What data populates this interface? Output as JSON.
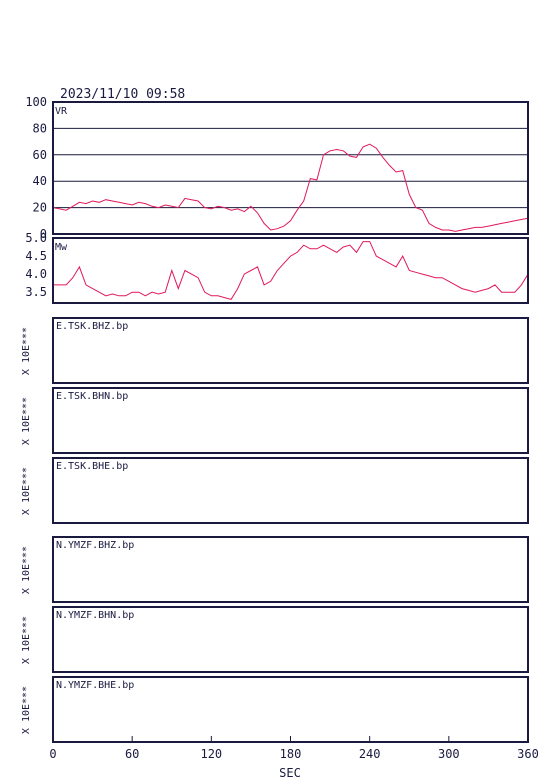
{
  "header": {
    "timestamp": "2023/11/10 09:58"
  },
  "colors": {
    "series": "#e0195a",
    "frame": "#1a1a40"
  },
  "x_axis": {
    "label": "SEC",
    "range": [
      0,
      360
    ],
    "ticks": [
      {
        "value": 0,
        "label": "0"
      },
      {
        "value": 60,
        "label": "60"
      },
      {
        "value": 120,
        "label": "120"
      },
      {
        "value": 180,
        "label": "180"
      },
      {
        "value": 240,
        "label": "240"
      },
      {
        "value": 300,
        "label": "300"
      },
      {
        "value": 360,
        "label": "360"
      }
    ]
  },
  "chart_data": [
    {
      "type": "line",
      "label": "VR",
      "ylim": [
        0,
        100
      ],
      "yticks": [
        {
          "value": 0,
          "label": "0"
        },
        {
          "value": 20,
          "label": "20"
        },
        {
          "value": 40,
          "label": "40"
        },
        {
          "value": 60,
          "label": "60"
        },
        {
          "value": 80,
          "label": "80"
        },
        {
          "value": 100,
          "label": "100"
        }
      ],
      "grid": true,
      "x": [
        0,
        5,
        10,
        15,
        20,
        25,
        30,
        35,
        40,
        45,
        50,
        55,
        60,
        65,
        70,
        75,
        80,
        85,
        90,
        95,
        100,
        105,
        110,
        115,
        120,
        125,
        130,
        135,
        140,
        145,
        150,
        155,
        160,
        165,
        170,
        175,
        180,
        185,
        190,
        195,
        200,
        205,
        210,
        215,
        220,
        225,
        230,
        235,
        240,
        245,
        250,
        255,
        260,
        265,
        270,
        275,
        280,
        285,
        290,
        295,
        300,
        305,
        310,
        315,
        320,
        325,
        330,
        335,
        340,
        345,
        350,
        355,
        360
      ],
      "values": [
        20,
        19,
        18,
        21,
        24,
        23,
        25,
        24,
        26,
        25,
        24,
        23,
        22,
        24,
        23,
        21,
        20,
        22,
        21,
        20,
        27,
        26,
        25,
        20,
        19,
        21,
        20,
        18,
        19,
        17,
        21,
        16,
        8,
        3,
        4,
        6,
        10,
        18,
        25,
        42,
        41,
        60,
        63,
        64,
        63,
        59,
        58,
        66,
        68,
        65,
        58,
        52,
        47,
        48,
        30,
        20,
        18,
        8,
        5,
        3,
        3,
        2,
        3,
        4,
        5,
        5,
        6,
        7,
        8,
        9,
        10,
        11,
        12
      ]
    },
    {
      "type": "line",
      "label": "Mw",
      "ylim": [
        3.2,
        5.0
      ],
      "yticks": [
        {
          "value": 3.5,
          "label": "3.5"
        },
        {
          "value": 4.0,
          "label": "4.0"
        },
        {
          "value": 4.5,
          "label": "4.5"
        },
        {
          "value": 5.0,
          "label": "5.0"
        }
      ],
      "grid": false,
      "x": [
        0,
        5,
        10,
        15,
        20,
        25,
        30,
        35,
        40,
        45,
        50,
        55,
        60,
        65,
        70,
        75,
        80,
        85,
        90,
        95,
        100,
        105,
        110,
        115,
        120,
        125,
        130,
        135,
        140,
        145,
        150,
        155,
        160,
        165,
        170,
        175,
        180,
        185,
        190,
        195,
        200,
        205,
        210,
        215,
        220,
        225,
        230,
        235,
        240,
        245,
        250,
        255,
        260,
        265,
        270,
        275,
        280,
        285,
        290,
        295,
        300,
        305,
        310,
        315,
        320,
        325,
        330,
        335,
        340,
        345,
        350,
        355,
        360
      ],
      "values": [
        3.7,
        3.7,
        3.7,
        3.9,
        4.2,
        3.7,
        3.6,
        3.5,
        3.4,
        3.45,
        3.4,
        3.4,
        3.5,
        3.5,
        3.4,
        3.5,
        3.45,
        3.5,
        4.1,
        3.6,
        4.1,
        4.0,
        3.9,
        3.5,
        3.4,
        3.4,
        3.35,
        3.3,
        3.6,
        4.0,
        4.1,
        4.2,
        3.7,
        3.8,
        4.1,
        4.3,
        4.5,
        4.6,
        4.8,
        4.7,
        4.7,
        4.8,
        4.7,
        4.6,
        4.75,
        4.8,
        4.6,
        4.9,
        4.9,
        4.5,
        4.4,
        4.3,
        4.2,
        4.5,
        4.1,
        4.05,
        4.0,
        3.95,
        3.9,
        3.9,
        3.8,
        3.7,
        3.6,
        3.55,
        3.5,
        3.55,
        3.6,
        3.7,
        3.5,
        3.5,
        3.5,
        3.7,
        4.0
      ]
    }
  ],
  "stations": [
    {
      "name": "E.TSK.BHZ.bp",
      "scale": "X 10E***"
    },
    {
      "name": "E.TSK.BHN.bp",
      "scale": "X 10E***"
    },
    {
      "name": "E.TSK.BHE.bp",
      "scale": "X 10E***"
    },
    {
      "name": "N.YMZF.BHZ.bp",
      "scale": "X 10E***"
    },
    {
      "name": "N.YMZF.BHN.bp",
      "scale": "X 10E***"
    },
    {
      "name": "N.YMZF.BHE.bp",
      "scale": "X 10E***"
    }
  ]
}
